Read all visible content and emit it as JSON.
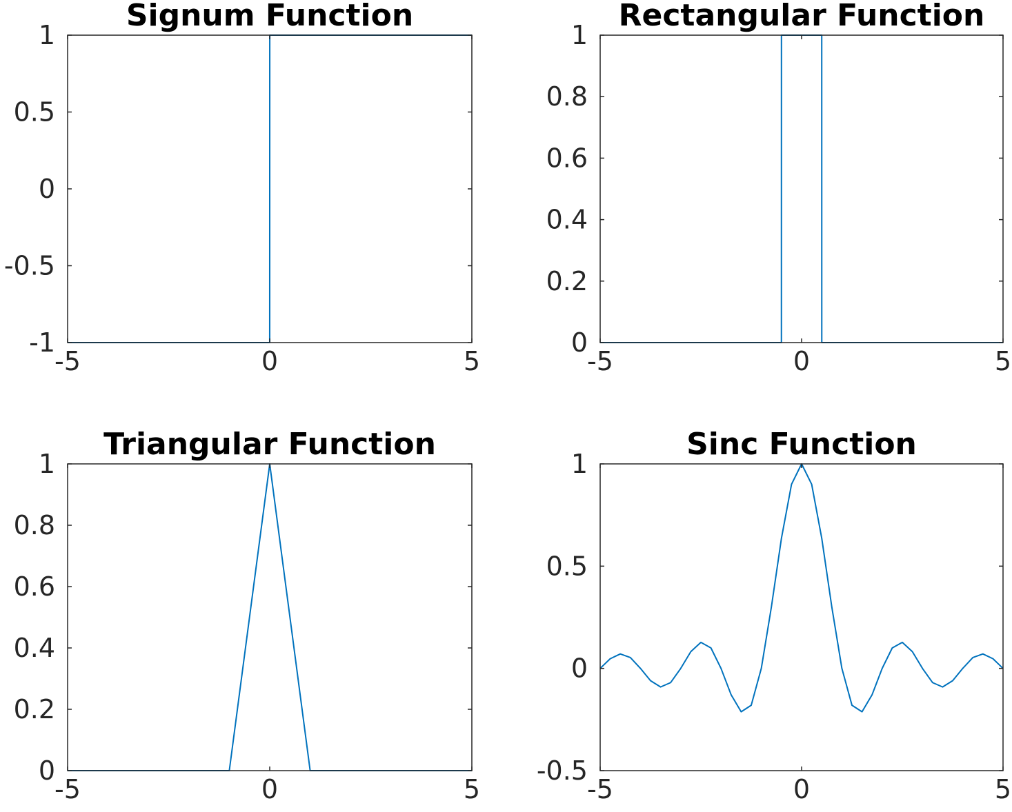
{
  "figure": {
    "line_color": "#0072BD",
    "axis_color": "#262626",
    "background": "#ffffff"
  },
  "chart_data": [
    {
      "type": "line",
      "title": "Signum Function",
      "xlabel": "",
      "ylabel": "",
      "xlim": [
        -5,
        5
      ],
      "ylim": [
        -1,
        1
      ],
      "xticks": [
        -5,
        0,
        5
      ],
      "xtick_labels": [
        "-5",
        "0",
        "5"
      ],
      "yticks": [
        -1,
        -0.5,
        0,
        0.5,
        1
      ],
      "ytick_labels": [
        "-1",
        "-0.5",
        "0",
        "0.5",
        "1"
      ],
      "grid": false,
      "series": [
        {
          "x": [
            -5,
            -0.001,
            0,
            0.001,
            5
          ],
          "y": [
            -1,
            -1,
            0,
            1,
            1
          ]
        }
      ]
    },
    {
      "type": "line",
      "title": "Rectangular Function",
      "xlabel": "",
      "ylabel": "",
      "xlim": [
        -5,
        5
      ],
      "ylim": [
        0,
        1
      ],
      "xticks": [
        -5,
        0,
        5
      ],
      "xtick_labels": [
        "-5",
        "0",
        "5"
      ],
      "yticks": [
        0,
        0.2,
        0.4,
        0.6,
        0.8,
        1
      ],
      "ytick_labels": [
        "0",
        "0.2",
        "0.4",
        "0.6",
        "0.8",
        "1"
      ],
      "grid": false,
      "series": [
        {
          "x": [
            -5,
            -0.501,
            -0.5,
            0.5,
            0.501,
            5
          ],
          "y": [
            0,
            0,
            1,
            1,
            0,
            0
          ]
        }
      ]
    },
    {
      "type": "line",
      "title": "Triangular Function",
      "xlabel": "",
      "ylabel": "",
      "xlim": [
        -5,
        5
      ],
      "ylim": [
        0,
        1
      ],
      "xticks": [
        -5,
        0,
        5
      ],
      "xtick_labels": [
        "-5",
        "0",
        "5"
      ],
      "yticks": [
        0,
        0.2,
        0.4,
        0.6,
        0.8,
        1
      ],
      "ytick_labels": [
        "0",
        "0.2",
        "0.4",
        "0.6",
        "0.8",
        "1"
      ],
      "grid": false,
      "series": [
        {
          "x": [
            -5,
            -1,
            0,
            1,
            5
          ],
          "y": [
            0,
            0,
            1,
            0,
            0
          ]
        }
      ]
    },
    {
      "type": "line",
      "title": "Sinc Function",
      "xlabel": "",
      "ylabel": "",
      "xlim": [
        -5,
        5
      ],
      "ylim": [
        -0.5,
        1
      ],
      "xticks": [
        -5,
        0,
        5
      ],
      "xtick_labels": [
        "-5",
        "0",
        "5"
      ],
      "yticks": [
        -0.5,
        0,
        0.5,
        1
      ],
      "ytick_labels": [
        "-0.5",
        "0",
        "0.5",
        "1"
      ],
      "grid": false,
      "series": [
        {
          "x": [
            -5,
            -4.75,
            -4.5,
            -4.25,
            -4,
            -3.75,
            -3.5,
            -3.25,
            -3,
            -2.75,
            -2.5,
            -2.25,
            -2,
            -1.75,
            -1.5,
            -1.25,
            -1,
            -0.75,
            -0.5,
            -0.25,
            0,
            0.25,
            0.5,
            0.75,
            1,
            1.25,
            1.5,
            1.75,
            2,
            2.25,
            2.5,
            2.75,
            3,
            3.25,
            3.5,
            3.75,
            4,
            4.25,
            4.5,
            4.75,
            5
          ],
          "y": [
            0,
            0.0474,
            0.0707,
            0.053,
            0,
            -0.06,
            -0.0909,
            -0.0693,
            0,
            0.0818,
            0.1273,
            0.1,
            0,
            -0.1286,
            -0.2122,
            -0.1801,
            0,
            0.3001,
            0.6366,
            0.9003,
            1,
            0.9003,
            0.6366,
            0.3001,
            0,
            -0.1801,
            -0.2122,
            -0.1286,
            0,
            0.1,
            0.1273,
            0.0818,
            0,
            -0.0693,
            -0.0909,
            -0.06,
            0,
            0.053,
            0.0707,
            0.0474,
            0
          ]
        }
      ]
    }
  ]
}
